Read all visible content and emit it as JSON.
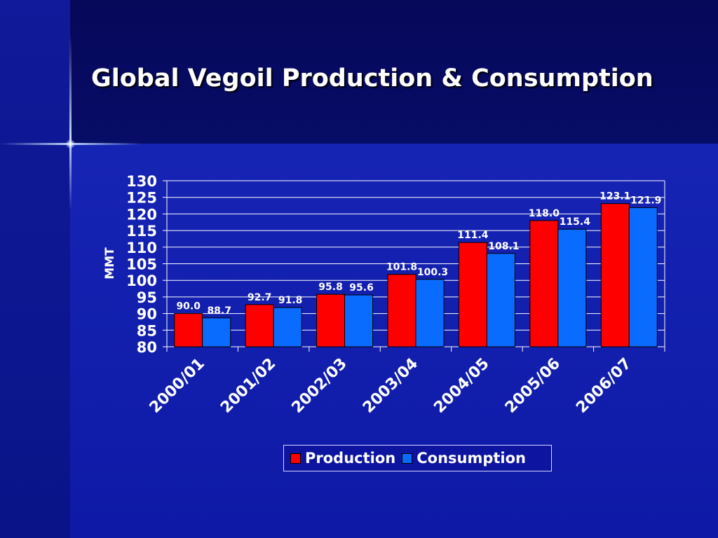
{
  "slide": {
    "title": "Global Vegoil Production & Consumption"
  },
  "colors": {
    "production": "#ff0000",
    "consumption": "#0a6cff",
    "grid": "#ffffff",
    "text": "#ffffff"
  },
  "chart_data": {
    "type": "bar",
    "title": "",
    "xlabel": "",
    "ylabel": "MMT",
    "ylim": [
      80,
      130
    ],
    "yticks": [
      80,
      85,
      90,
      95,
      100,
      105,
      110,
      115,
      120,
      125,
      130
    ],
    "grid": true,
    "legend_position": "bottom",
    "categories": [
      "2000/01",
      "2001/02",
      "2002/03",
      "2003/04",
      "2004/05",
      "2005/06",
      "2006/07"
    ],
    "series": [
      {
        "name": "Production",
        "color": "#ff0000",
        "values": [
          90.0,
          92.7,
          95.8,
          101.8,
          111.4,
          118.0,
          123.1
        ],
        "labels": [
          "90.0",
          "92.7",
          "95.8",
          "101.8",
          "111.4",
          "118.0",
          "123.1"
        ]
      },
      {
        "name": "Consumption",
        "color": "#0a6cff",
        "values": [
          88.7,
          91.8,
          95.6,
          100.3,
          108.1,
          115.4,
          121.9
        ],
        "labels": [
          "88.7",
          "91.8",
          "95.6",
          "100.3",
          "108.1",
          "115.4",
          "121.9"
        ]
      }
    ]
  }
}
